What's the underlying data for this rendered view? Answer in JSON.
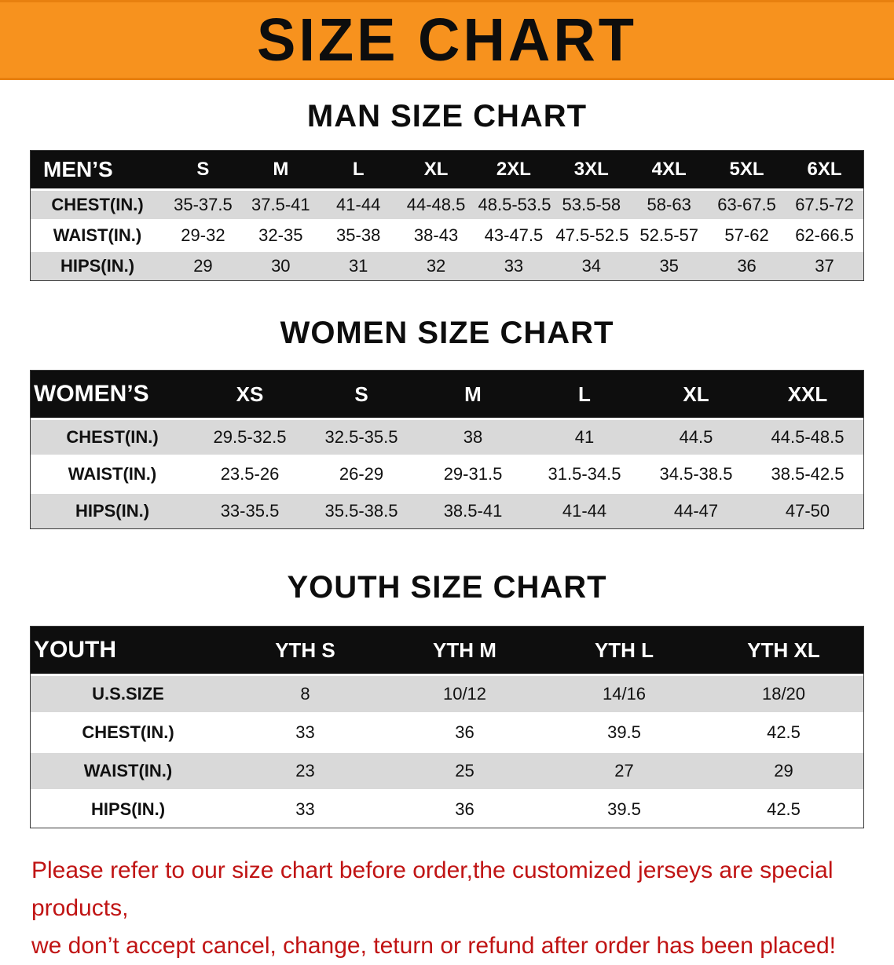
{
  "banner": {
    "title": "SIZE CHART"
  },
  "colors": {
    "banner_orange": "#f7921e",
    "table_header_black": "#0e0e0e",
    "row_gray": "#d9d9d9",
    "notice_red": "#c01414"
  },
  "sections": [
    {
      "id": "men",
      "heading": "MAN SIZE CHART",
      "table": {
        "header": [
          "MEN’S",
          "S",
          "M",
          "L",
          "XL",
          "2XL",
          "3XL",
          "4XL",
          "5XL",
          "6XL"
        ],
        "rows": [
          [
            "CHEST(IN.)",
            "35-37.5",
            "37.5-41",
            "41-44",
            "44-48.5",
            "48.5-53.5",
            "53.5-58",
            "58-63",
            "63-67.5",
            "67.5-72"
          ],
          [
            "WAIST(IN.)",
            "29-32",
            "32-35",
            "35-38",
            "38-43",
            "43-47.5",
            "47.5-52.5",
            "52.5-57",
            "57-62",
            "62-66.5"
          ],
          [
            "HIPS(IN.)",
            "29",
            "30",
            "31",
            "32",
            "33",
            "34",
            "35",
            "36",
            "37"
          ]
        ]
      }
    },
    {
      "id": "women",
      "heading": "WOMEN SIZE CHART",
      "table": {
        "header": [
          "WOMEN’S",
          "XS",
          "S",
          "M",
          "L",
          "XL",
          "XXL"
        ],
        "rows": [
          [
            "CHEST(IN.)",
            "29.5-32.5",
            "32.5-35.5",
            "38",
            "41",
            "44.5",
            "44.5-48.5"
          ],
          [
            "WAIST(IN.)",
            "23.5-26",
            "26-29",
            "29-31.5",
            "31.5-34.5",
            "34.5-38.5",
            "38.5-42.5"
          ],
          [
            "HIPS(IN.)",
            "33-35.5",
            "35.5-38.5",
            "38.5-41",
            "41-44",
            "44-47",
            "47-50"
          ]
        ]
      }
    },
    {
      "id": "youth",
      "heading": "YOUTH SIZE CHART",
      "table": {
        "header": [
          "YOUTH",
          "YTH S",
          "YTH M",
          "YTH L",
          "YTH XL"
        ],
        "rows": [
          [
            "U.S.SIZE",
            "8",
            "10/12",
            "14/16",
            "18/20"
          ],
          [
            "CHEST(IN.)",
            "33",
            "36",
            "39.5",
            "42.5"
          ],
          [
            "WAIST(IN.)",
            "23",
            "25",
            "27",
            "29"
          ],
          [
            "HIPS(IN.)",
            "33",
            "36",
            "39.5",
            "42.5"
          ]
        ]
      }
    }
  ],
  "notice": {
    "line1": "Please refer to our size chart before order,the customized jerseys are special products,",
    "line2": "we don’t accept cancel, change, teturn or refund after order has been placed!"
  }
}
